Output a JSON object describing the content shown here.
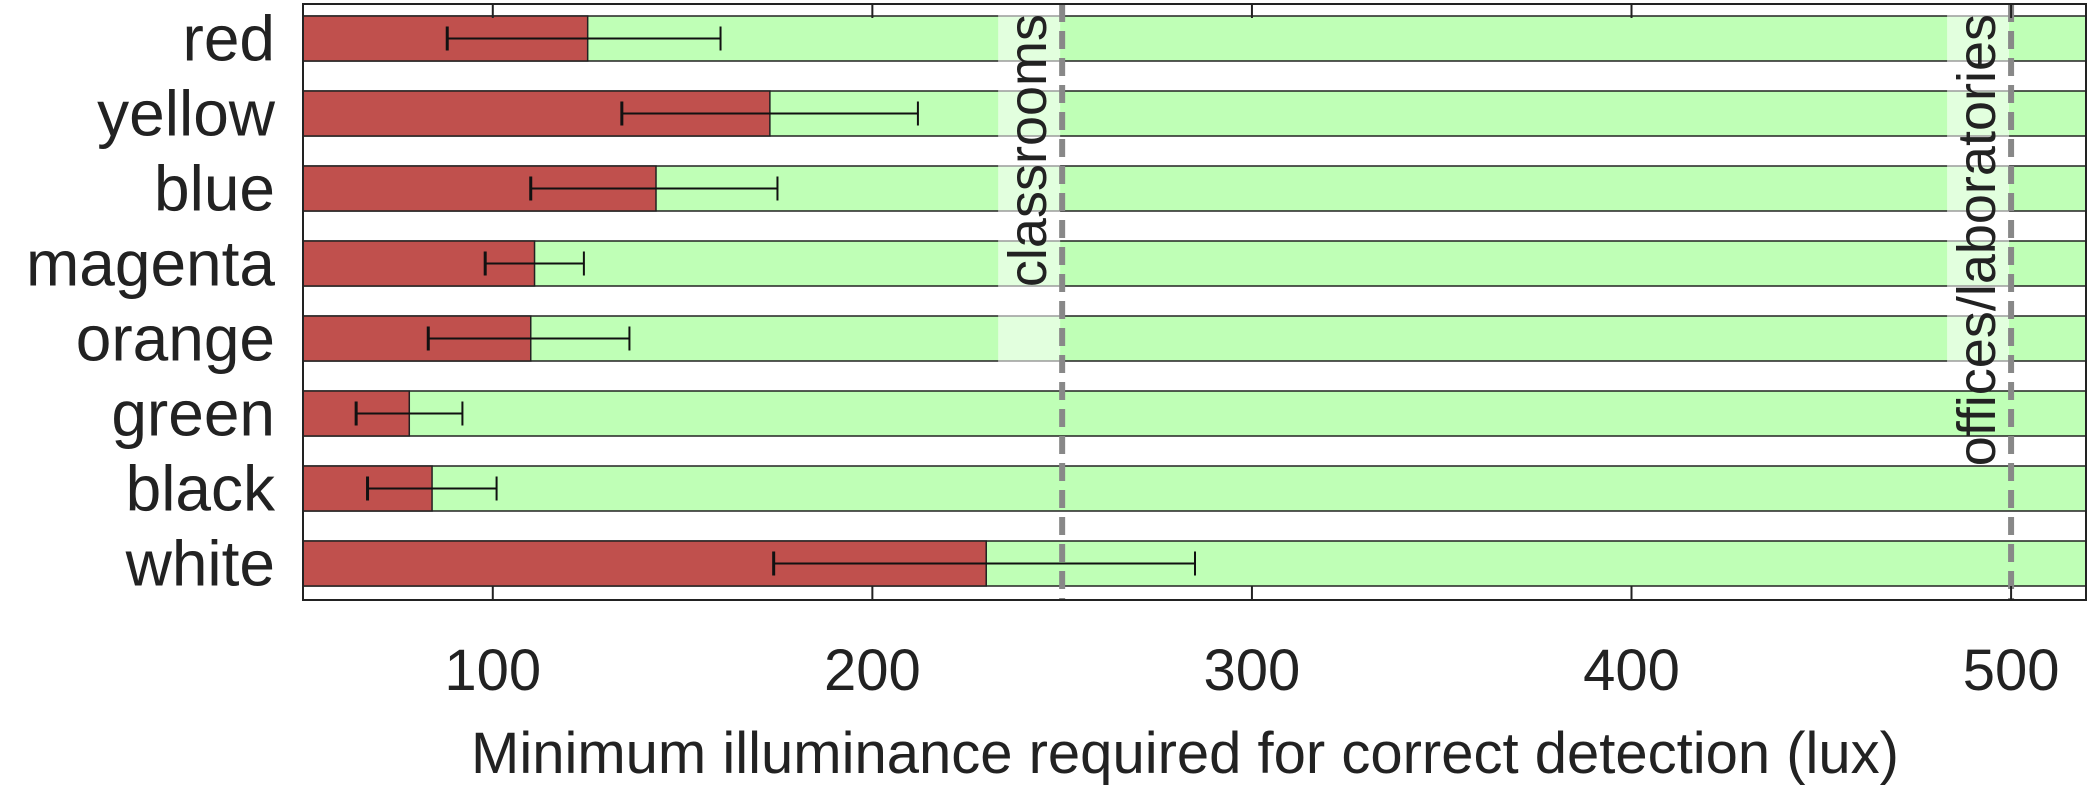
{
  "chart_data": {
    "type": "bar",
    "orientation": "horizontal",
    "xlabel": "Minimum illuminance required for correct detection (lux)",
    "ylabel": "",
    "xlim": [
      50,
      520
    ],
    "xticks": [
      100,
      200,
      300,
      400,
      500
    ],
    "grid": false,
    "categories": [
      "red",
      "yellow",
      "blue",
      "magenta",
      "orange",
      "green",
      "black",
      "white"
    ],
    "values": [
      125,
      173,
      143,
      111,
      110,
      78,
      84,
      230
    ],
    "error_low": [
      88,
      134,
      110,
      98,
      83,
      64,
      67,
      174
    ],
    "error_high": [
      160,
      212,
      175,
      124,
      136,
      92,
      101,
      285
    ],
    "reference_lines": [
      {
        "value": 250,
        "label": "classrooms"
      },
      {
        "value": 500,
        "label": "offices/laboratories"
      }
    ],
    "colors": {
      "bar": "#c0504d",
      "background_band": "#bfffb6",
      "reference_line": "#888888",
      "text": "#222222"
    }
  }
}
